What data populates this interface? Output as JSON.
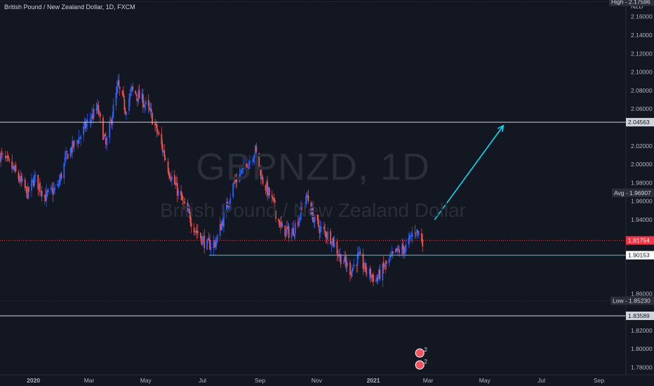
{
  "header": {
    "symbol_title": "British Pound / New Zealand Dollar, 1D, FXCM"
  },
  "watermark": {
    "symbol": "GBPNZD, 1D",
    "description": "British Pound / New Zealand Dollar"
  },
  "price_axis": {
    "currency": "NZD",
    "ticks": [
      "2.16000",
      "2.14000",
      "2.12000",
      "2.10000",
      "2.08000",
      "2.06000",
      "2.02000",
      "2.00000",
      "1.98000",
      "1.96000",
      "1.94000",
      "1.86000",
      "1.82000",
      "1.80000",
      "1.78000"
    ]
  },
  "time_axis": {
    "labels": [
      "2020",
      "Mar",
      "May",
      "Jul",
      "Sep",
      "Nov",
      "2021",
      "Mar",
      "May",
      "Jul",
      "Sep"
    ]
  },
  "price_tags": {
    "high": "High - 2.17596",
    "avg": "Avg - 1.96907",
    "low": "Low - 1.85230",
    "last": "1.91754",
    "resistance": "2.04563",
    "support": "1.90153",
    "bottom": "1.83589"
  },
  "event_badges": [
    "2",
    "2"
  ],
  "colors": {
    "background": "#131722",
    "up": "#2962ff",
    "down": "#ef5350",
    "support_line": "#00e5ff",
    "arrow": "#00e5ff",
    "white_lines": "#d1d4dc",
    "last_price": "#f23645"
  },
  "chart_data": {
    "type": "candlestick",
    "title": "British Pound / New Zealand Dollar, 1D, FXCM",
    "y_unit": "NZD",
    "ylim": [
      1.772,
      2.178
    ],
    "x_range": [
      "2019-11-26",
      "2021-09-30"
    ],
    "key_points": [
      {
        "date": "2019-11-26",
        "close": 2.01
      },
      {
        "date": "2019-12-10",
        "close": 1.995
      },
      {
        "date": "2019-12-26",
        "close": 1.968
      },
      {
        "date": "2020-01-02",
        "close": 1.985
      },
      {
        "date": "2020-01-14",
        "close": 1.965
      },
      {
        "date": "2020-01-27",
        "close": 1.975
      },
      {
        "date": "2020-02-06",
        "close": 2.01
      },
      {
        "date": "2020-02-20",
        "close": 2.03
      },
      {
        "date": "2020-02-28",
        "close": 2.045
      },
      {
        "date": "2020-03-10",
        "close": 2.06
      },
      {
        "date": "2020-03-19",
        "close": 2.02
      },
      {
        "date": "2020-03-26",
        "close": 2.055
      },
      {
        "date": "2020-04-01",
        "close": 2.085
      },
      {
        "date": "2020-04-09",
        "close": 2.06
      },
      {
        "date": "2020-04-16",
        "close": 2.08
      },
      {
        "date": "2020-04-27",
        "close": 2.07
      },
      {
        "date": "2020-05-06",
        "close": 2.055
      },
      {
        "date": "2020-05-15",
        "close": 2.03
      },
      {
        "date": "2020-05-27",
        "close": 1.99
      },
      {
        "date": "2020-06-09",
        "close": 1.96
      },
      {
        "date": "2020-06-23",
        "close": 1.93
      },
      {
        "date": "2020-07-06",
        "close": 1.912
      },
      {
        "date": "2020-07-15",
        "close": 1.915
      },
      {
        "date": "2020-07-23",
        "close": 1.94
      },
      {
        "date": "2020-08-04",
        "close": 1.98
      },
      {
        "date": "2020-08-18",
        "close": 2.0
      },
      {
        "date": "2020-08-27",
        "close": 2.015
      },
      {
        "date": "2020-09-03",
        "close": 1.985
      },
      {
        "date": "2020-09-14",
        "close": 1.96
      },
      {
        "date": "2020-09-24",
        "close": 1.93
      },
      {
        "date": "2020-10-05",
        "close": 1.925
      },
      {
        "date": "2020-10-14",
        "close": 1.945
      },
      {
        "date": "2020-10-22",
        "close": 1.965
      },
      {
        "date": "2020-10-29",
        "close": 1.94
      },
      {
        "date": "2020-11-05",
        "close": 1.93
      },
      {
        "date": "2020-11-17",
        "close": 1.92
      },
      {
        "date": "2020-11-26",
        "close": 1.9
      },
      {
        "date": "2020-12-08",
        "close": 1.885
      },
      {
        "date": "2020-12-16",
        "close": 1.9
      },
      {
        "date": "2020-12-24",
        "close": 1.885
      },
      {
        "date": "2021-01-04",
        "close": 1.875
      },
      {
        "date": "2021-01-14",
        "close": 1.89
      },
      {
        "date": "2021-01-26",
        "close": 1.905
      },
      {
        "date": "2021-02-05",
        "close": 1.91
      },
      {
        "date": "2021-02-15",
        "close": 1.93
      },
      {
        "date": "2021-02-23",
        "close": 1.918
      }
    ],
    "levels": {
      "high": 2.17596,
      "resistance": 2.04563,
      "avg": 1.96907,
      "last": 1.91754,
      "support": 1.90153,
      "low": 1.8523,
      "bottom": 1.83589
    },
    "projection_arrow": {
      "from": {
        "date": "2021-03-08",
        "price": 1.94
      },
      "to": {
        "date": "2021-05-21",
        "price": 2.042
      }
    }
  }
}
